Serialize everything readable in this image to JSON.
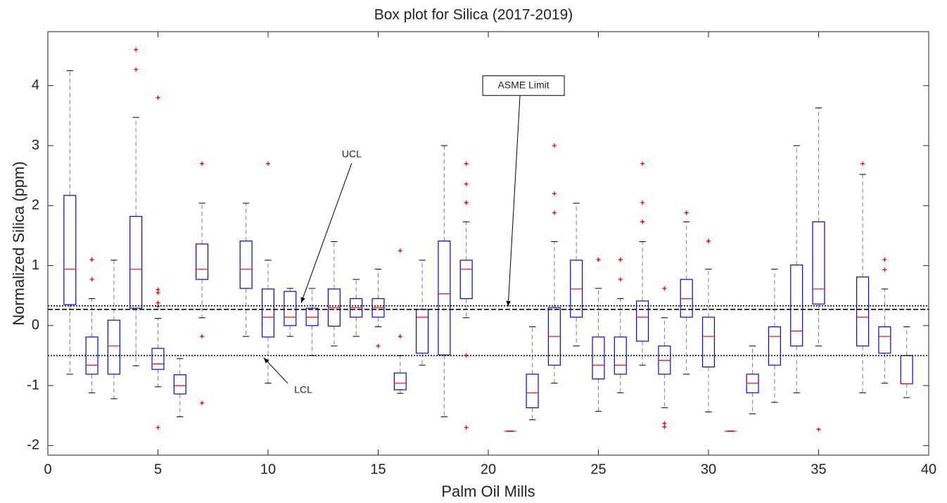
{
  "chart_data": {
    "type": "box",
    "title": "Box plot for Silica (2017-2019)",
    "x_label": "Palm Oil Mills",
    "y_label": "Normalized Silica (ppm)",
    "xlim": [
      0,
      40
    ],
    "ylim": [
      -2.16,
      4.9
    ],
    "xticks": [
      0,
      5,
      10,
      15,
      20,
      25,
      30,
      35,
      40
    ],
    "yticks": [
      -2,
      -1,
      0,
      1,
      2,
      3,
      4
    ],
    "box_color": "#0000ff",
    "median_color": "#ff0000",
    "whisker_color": "#808080",
    "outlier_color": "#ff0000",
    "boxes": [
      {
        "x": 1,
        "low": -0.81,
        "q1": 0.35,
        "median": 0.94,
        "q3": 2.17,
        "high": 4.25,
        "outliers": []
      },
      {
        "x": 2,
        "low": -1.12,
        "q1": -0.81,
        "median": -0.66,
        "q3": -0.19,
        "high": 0.45,
        "outliers": [
          1.1,
          1.1,
          0.77
        ]
      },
      {
        "x": 3,
        "low": -1.22,
        "q1": -0.81,
        "median": -0.34,
        "q3": 0.09,
        "high": 1.09,
        "outliers": []
      },
      {
        "x": 4,
        "low": -0.67,
        "q1": 0.29,
        "median": 0.94,
        "q3": 1.82,
        "high": 3.47,
        "outliers": [
          4.6,
          4.27
        ]
      },
      {
        "x": 5,
        "low": -1.02,
        "q1": -0.73,
        "median": -0.64,
        "q3": -0.38,
        "high": 0.12,
        "outliers": [
          3.8,
          0.6,
          0.55,
          0.38,
          0.32,
          -1.7
        ]
      },
      {
        "x": 6,
        "low": -1.52,
        "q1": -1.14,
        "median": -1.0,
        "q3": -0.82,
        "high": -0.55,
        "outliers": []
      },
      {
        "x": 7,
        "low": 0.13,
        "q1": 0.77,
        "median": 0.94,
        "q3": 1.36,
        "high": 2.04,
        "outliers": [
          2.7,
          2.7,
          -0.18,
          -1.29
        ]
      },
      {
        "x": 9,
        "low": -0.18,
        "q1": 0.62,
        "median": 0.94,
        "q3": 1.41,
        "high": 2.04,
        "outliers": []
      },
      {
        "x": 10,
        "low": -0.96,
        "q1": -0.19,
        "median": 0.14,
        "q3": 0.61,
        "high": 1.09,
        "outliers": [
          2.7
        ]
      },
      {
        "x": 11,
        "low": -0.18,
        "q1": 0.0,
        "median": 0.14,
        "q3": 0.57,
        "high": 0.62,
        "outliers": []
      },
      {
        "x": 12,
        "low": -0.5,
        "q1": 0.0,
        "median": 0.14,
        "q3": 0.29,
        "high": 0.62,
        "outliers": []
      },
      {
        "x": 13,
        "low": -0.34,
        "q1": -0.01,
        "median": 0.3,
        "q3": 0.61,
        "high": 1.4,
        "outliers": []
      },
      {
        "x": 14,
        "low": -0.18,
        "q1": 0.14,
        "median": 0.3,
        "q3": 0.45,
        "high": 0.77,
        "outliers": []
      },
      {
        "x": 15,
        "low": -0.02,
        "q1": 0.14,
        "median": 0.3,
        "q3": 0.45,
        "high": 0.94,
        "outliers": [
          -0.34
        ]
      },
      {
        "x": 16,
        "low": -1.13,
        "q1": -1.07,
        "median": -0.96,
        "q3": -0.79,
        "high": -0.5,
        "outliers": [
          1.25,
          -0.18
        ]
      },
      {
        "x": 17,
        "low": -0.66,
        "q1": -0.46,
        "median": 0.14,
        "q3": 0.27,
        "high": 1.09,
        "outliers": []
      },
      {
        "x": 18,
        "low": -1.52,
        "q1": -0.49,
        "median": 0.53,
        "q3": 1.41,
        "high": 3.0,
        "outliers": []
      },
      {
        "x": 19,
        "low": 0.13,
        "q1": 0.45,
        "median": 0.94,
        "q3": 1.09,
        "high": 1.73,
        "outliers": [
          2.7,
          2.36,
          2.05,
          2.05,
          -0.5,
          -1.7
        ]
      },
      {
        "x": 21,
        "low": -1.76,
        "q1": -1.76,
        "median": -1.76,
        "q3": -1.76,
        "high": -1.76,
        "outliers": []
      },
      {
        "x": 22,
        "low": -1.57,
        "q1": -1.37,
        "median": -1.12,
        "q3": -0.81,
        "high": -0.02,
        "outliers": []
      },
      {
        "x": 23,
        "low": -0.96,
        "q1": -0.66,
        "median": -0.18,
        "q3": 0.3,
        "high": 1.4,
        "outliers": [
          3.0,
          2.2,
          1.88
        ]
      },
      {
        "x": 24,
        "low": -0.34,
        "q1": 0.14,
        "median": 0.61,
        "q3": 1.09,
        "high": 2.04,
        "outliers": []
      },
      {
        "x": 25,
        "low": -1.43,
        "q1": -0.89,
        "median": -0.66,
        "q3": -0.19,
        "high": 0.62,
        "outliers": [
          1.1,
          1.1
        ]
      },
      {
        "x": 26,
        "low": -1.12,
        "q1": -0.81,
        "median": -0.66,
        "q3": -0.19,
        "high": 0.45,
        "outliers": [
          1.1,
          1.1,
          0.77
        ]
      },
      {
        "x": 27,
        "low": -0.66,
        "q1": -0.26,
        "median": 0.14,
        "q3": 0.41,
        "high": 1.4,
        "outliers": [
          2.7,
          2.05,
          1.73,
          1.73
        ]
      },
      {
        "x": 28,
        "low": -1.37,
        "q1": -0.81,
        "median": -0.58,
        "q3": -0.34,
        "high": 0.13,
        "outliers": [
          0.62,
          -1.63,
          -1.69
        ]
      },
      {
        "x": 29,
        "low": -0.81,
        "q1": 0.14,
        "median": 0.45,
        "q3": 0.77,
        "high": 1.73,
        "outliers": [
          1.88,
          1.88
        ]
      },
      {
        "x": 30,
        "low": -1.44,
        "q1": -0.69,
        "median": -0.18,
        "q3": 0.14,
        "high": 0.94,
        "outliers": [
          1.41,
          1.41
        ]
      },
      {
        "x": 31,
        "low": -1.76,
        "q1": -1.76,
        "median": -1.76,
        "q3": -1.76,
        "high": -1.76,
        "outliers": []
      },
      {
        "x": 32,
        "low": -1.47,
        "q1": -1.12,
        "median": -0.96,
        "q3": -0.81,
        "high": -0.34,
        "outliers": []
      },
      {
        "x": 33,
        "low": -1.28,
        "q1": -0.66,
        "median": -0.18,
        "q3": -0.02,
        "high": 0.94,
        "outliers": []
      },
      {
        "x": 34,
        "low": -1.12,
        "q1": -0.34,
        "median": -0.09,
        "q3": 1.01,
        "high": 3.0,
        "outliers": []
      },
      {
        "x": 35,
        "low": -0.34,
        "q1": 0.36,
        "median": 0.61,
        "q3": 1.73,
        "high": 3.63,
        "outliers": [
          -1.73
        ]
      },
      {
        "x": 37,
        "low": -1.12,
        "q1": -0.34,
        "median": 0.14,
        "q3": 0.81,
        "high": 2.52,
        "outliers": [
          2.7
        ]
      },
      {
        "x": 38,
        "low": -0.96,
        "q1": -0.46,
        "median": -0.18,
        "q3": -0.02,
        "high": 0.61,
        "outliers": [
          1.1,
          0.93
        ]
      },
      {
        "x": 39,
        "low": -1.2,
        "q1": -0.97,
        "median": -0.97,
        "q3": -0.5,
        "high": -0.02,
        "outliers": []
      }
    ],
    "reference_lines": [
      {
        "label": "UCL",
        "value": 0.33,
        "style": "dotted"
      },
      {
        "label": "ASME Limit",
        "value": 0.27,
        "style": "dashed"
      },
      {
        "label": "LCL",
        "value": -0.5,
        "style": "dotted"
      }
    ]
  }
}
